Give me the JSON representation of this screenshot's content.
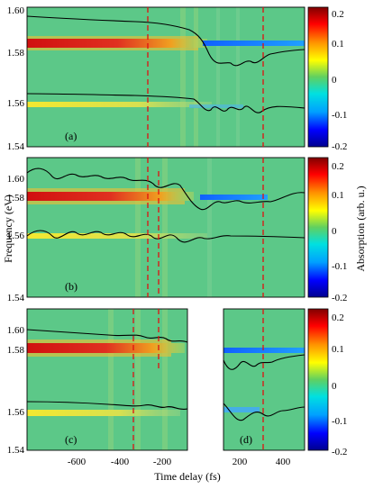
{
  "chart_data": {
    "type": "heatmap",
    "ylabel": "Frequency (eV)",
    "xlabel": "Time delay (fs)",
    "colorbar": {
      "label": "Absorption (arb. u.)",
      "ticks": [
        "0.2",
        "0.1",
        "0",
        "-0.1",
        "-0.2"
      ],
      "range": [
        -0.2,
        0.2
      ],
      "stops": [
        "#00008f",
        "#0000ff",
        "#00a0ff",
        "#00e0e0",
        "#60d060",
        "#ffff00",
        "#ff9000",
        "#ff0000",
        "#800000"
      ]
    },
    "y_ticks": [
      "1.60",
      "1.58",
      "1.56",
      "1.54"
    ],
    "ylim": [
      1.54,
      1.61
    ],
    "x_ticks_left": [
      "-600",
      "-400",
      "-200"
    ],
    "x_ticks_right": [
      "200",
      "400"
    ],
    "panels": [
      {
        "label": "(a)",
        "xlim": [
          -780,
          580
        ],
        "dashed_lines_fs": [
          -265,
          265
        ]
      },
      {
        "label": "(b)",
        "xlim": [
          -780,
          580
        ],
        "dashed_lines_fs": [
          -265,
          -215,
          265
        ]
      },
      {
        "label": "(c)",
        "xlim": [
          -780,
          -80
        ],
        "dashed_lines_fs": [
          -330,
          -220
        ]
      },
      {
        "label": "(d)",
        "xlim": [
          60,
          580
        ],
        "dashed_lines_fs": [
          265
        ]
      }
    ]
  }
}
